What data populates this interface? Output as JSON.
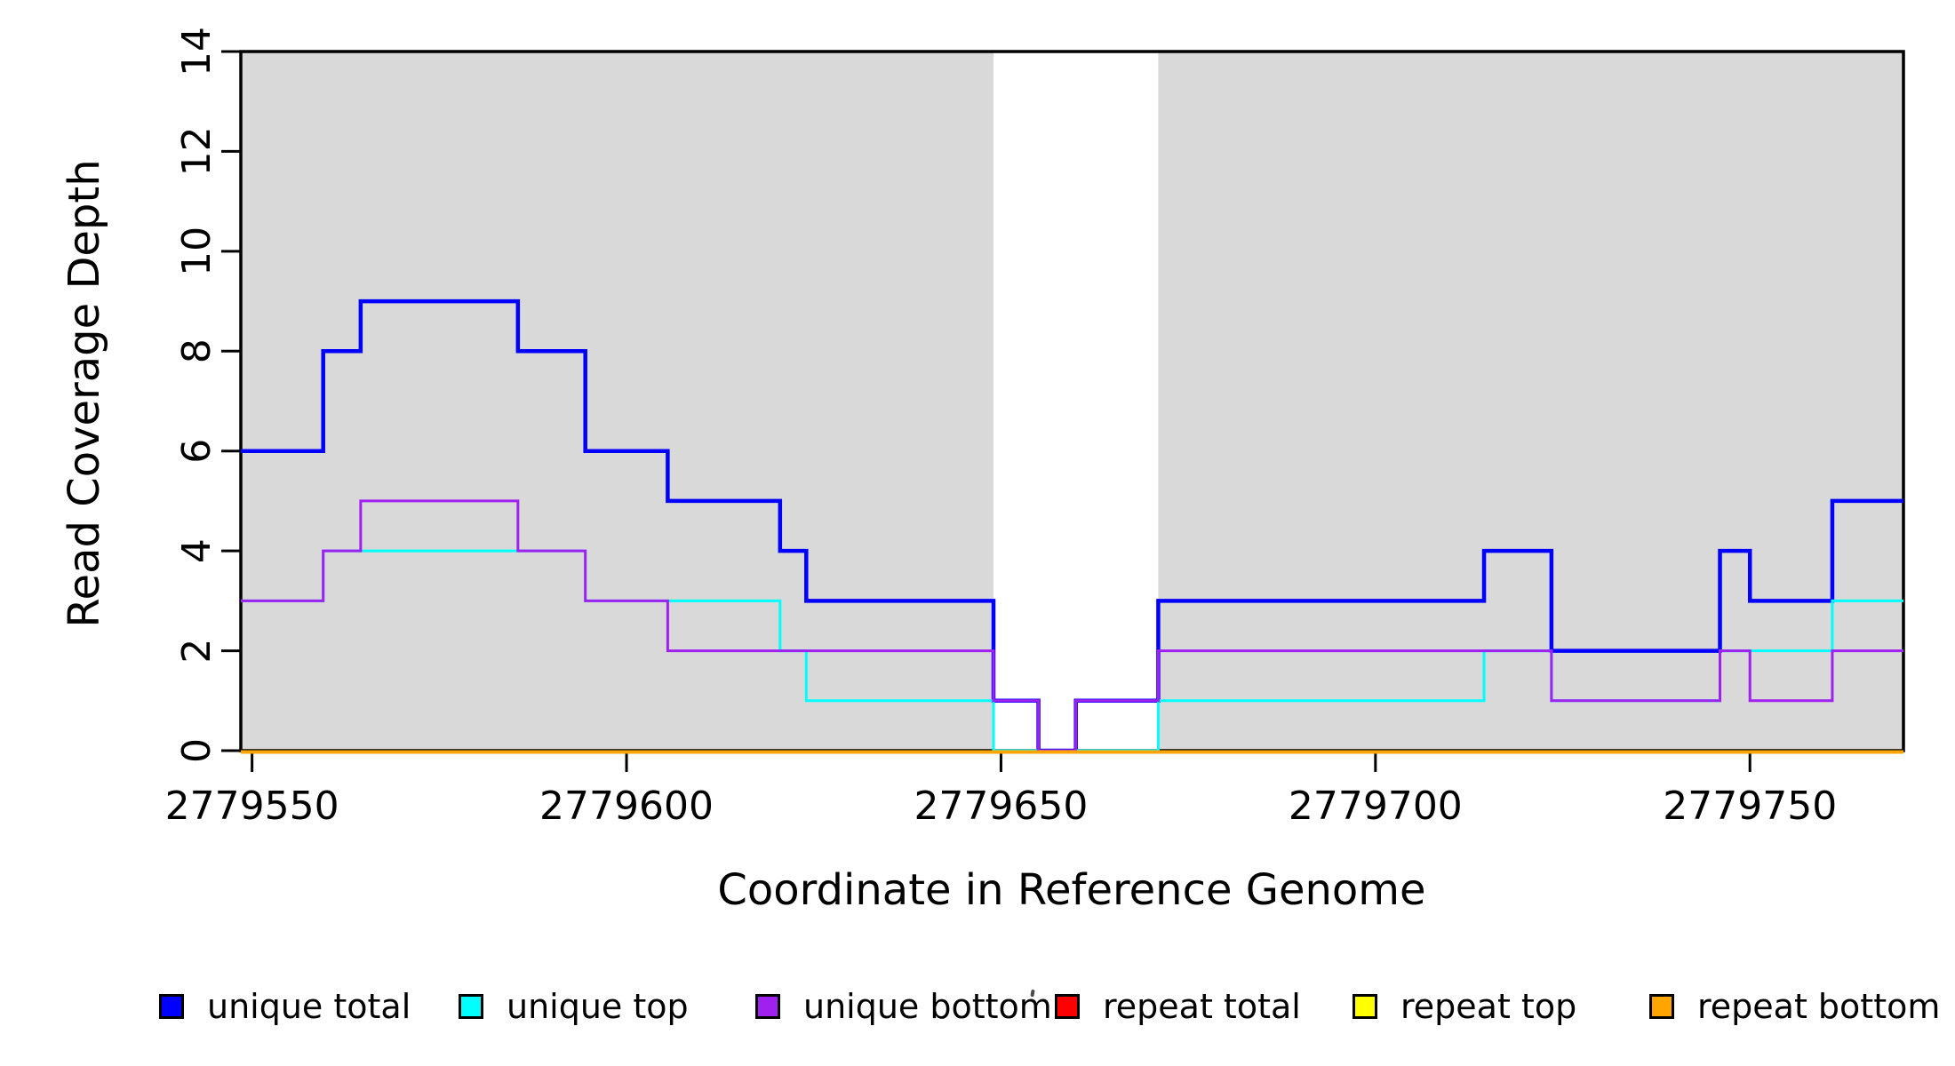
{
  "chart_data": {
    "type": "line",
    "subtype": "step",
    "title": "",
    "xlabel": "Coordinate in Reference Genome",
    "ylabel": "Read Coverage Depth",
    "xlim": [
      2779548.5,
      2779770.5
    ],
    "ylim": [
      0,
      14
    ],
    "x_ticks": [
      2779550,
      2779600,
      2779650,
      2779700,
      2779750
    ],
    "y_ticks": [
      0,
      2,
      4,
      6,
      8,
      10,
      12,
      14
    ],
    "grid": false,
    "legend_position": "bottom",
    "background_color": "#FFFFFF",
    "band_color": "#D9D9D9",
    "axis_color": "#000000",
    "shaded_regions": [
      {
        "x0": 2779548.5,
        "x1": 2779649,
        "label": "shaded-region-left"
      },
      {
        "x0": 2779671,
        "x1": 2779770.5,
        "label": "shaded-region-right"
      }
    ],
    "series": [
      {
        "name": "unique total",
        "color": "#0000FF",
        "line_width": 4.5,
        "points": [
          [
            2779548.5,
            6
          ],
          [
            2779559.5,
            8
          ],
          [
            2779564.5,
            9
          ],
          [
            2779585.5,
            8
          ],
          [
            2779594.5,
            6
          ],
          [
            2779605.5,
            5
          ],
          [
            2779620.5,
            4
          ],
          [
            2779624,
            3
          ],
          [
            2779649,
            1
          ],
          [
            2779655,
            0
          ],
          [
            2779660,
            1
          ],
          [
            2779671,
            3
          ],
          [
            2779714.5,
            4
          ],
          [
            2779723.5,
            2
          ],
          [
            2779746,
            4
          ],
          [
            2779750,
            3
          ],
          [
            2779761,
            5
          ],
          [
            2779770.5,
            5
          ]
        ]
      },
      {
        "name": "unique top",
        "color": "#00FFFF",
        "line_width": 3,
        "points": [
          [
            2779548.5,
            3
          ],
          [
            2779559.5,
            4
          ],
          [
            2779594.5,
            3
          ],
          [
            2779620.5,
            2
          ],
          [
            2779624,
            1
          ],
          [
            2779649,
            0
          ],
          [
            2779671,
            1
          ],
          [
            2779714.5,
            2
          ],
          [
            2779723.5,
            1
          ],
          [
            2779746,
            2
          ],
          [
            2779761,
            3
          ],
          [
            2779770.5,
            3
          ]
        ]
      },
      {
        "name": "unique bottom",
        "color": "#A020F0",
        "line_width": 3,
        "points": [
          [
            2779548.5,
            3
          ],
          [
            2779559.5,
            4
          ],
          [
            2779564.5,
            5
          ],
          [
            2779585.5,
            4
          ],
          [
            2779594.5,
            3
          ],
          [
            2779605.5,
            2
          ],
          [
            2779649,
            1
          ],
          [
            2779655,
            0
          ],
          [
            2779660,
            1
          ],
          [
            2779671,
            2
          ],
          [
            2779723.5,
            1
          ],
          [
            2779746,
            2
          ],
          [
            2779750,
            1
          ],
          [
            2779761,
            2
          ],
          [
            2779770.5,
            2
          ]
        ]
      },
      {
        "name": "repeat total",
        "color": "#FF0000",
        "line_width": 3,
        "points": [
          [
            2779548.5,
            0
          ],
          [
            2779770.5,
            0
          ]
        ]
      },
      {
        "name": "repeat top",
        "color": "#FFFF00",
        "line_width": 3,
        "points": [
          [
            2779548.5,
            0
          ],
          [
            2779770.5,
            0
          ]
        ]
      },
      {
        "name": "repeat bottom",
        "color": "#FFA500",
        "line_width": 4,
        "points": [
          [
            2779548.5,
            0
          ],
          [
            2779770.5,
            0
          ]
        ]
      }
    ]
  }
}
